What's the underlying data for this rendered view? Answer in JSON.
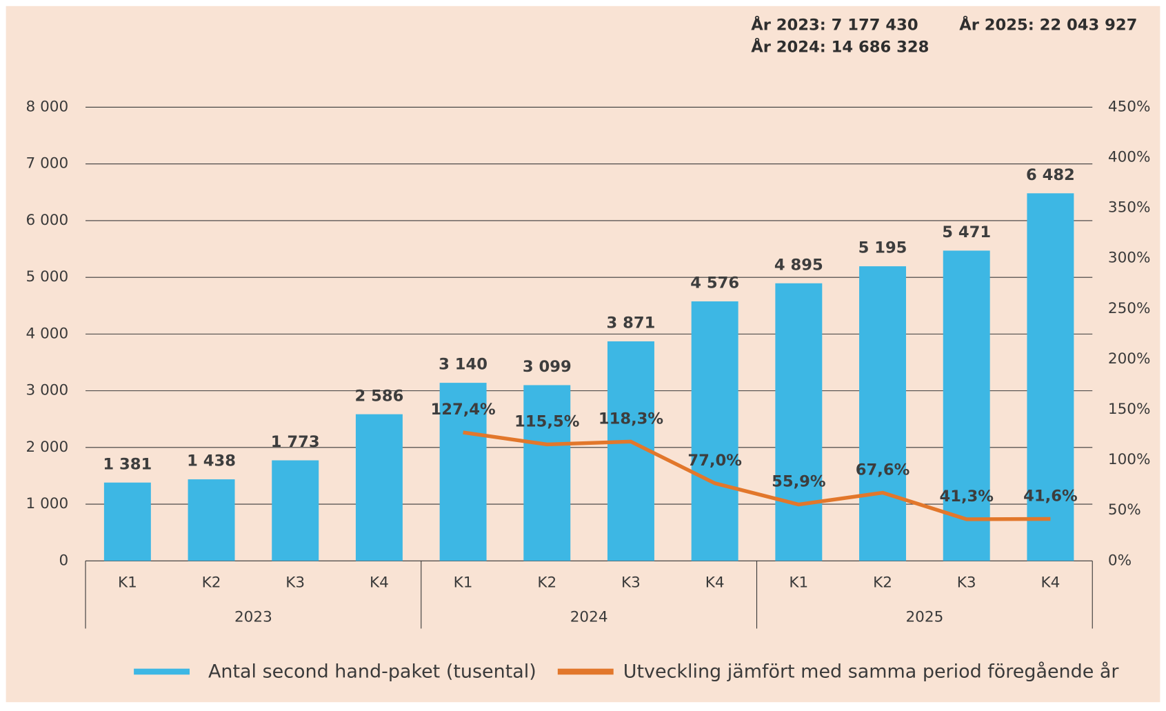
{
  "chart_data": {
    "type": "bar",
    "categories": [
      "K1",
      "K2",
      "K3",
      "K4",
      "K1",
      "K2",
      "K3",
      "K4",
      "K1",
      "K2",
      "K3",
      "K4"
    ],
    "category_groups": [
      "2023",
      "2024",
      "2025"
    ],
    "annotations": [
      "År 2023: 7 177 430",
      "År 2024: 14 686 328",
      "År 2025: 22 043 927"
    ],
    "series": [
      {
        "name": "Antal second hand-paket (tusental)",
        "type": "bar",
        "color": "#3db7e4",
        "values": [
          1381,
          1438,
          1773,
          2586,
          3140,
          3099,
          3871,
          4576,
          4895,
          5195,
          5471,
          6482
        ],
        "value_labels": [
          "1 381",
          "1 438",
          "1 773",
          "2 586",
          "3 140",
          "3 099",
          "3 871",
          "4 576",
          "4 895",
          "5 195",
          "5 471",
          "6 482"
        ]
      },
      {
        "name": "Utveckling jämfört med samma period föregående år",
        "type": "line",
        "axis": "y2",
        "color": "#e2772b",
        "values": [
          null,
          null,
          null,
          null,
          127.4,
          115.5,
          118.3,
          77.0,
          55.9,
          67.6,
          41.3,
          41.6
        ],
        "value_labels": [
          null,
          null,
          null,
          null,
          "127,4%",
          "115,5%",
          "118,3%",
          "77,0%",
          "55,9%",
          "67,6%",
          "41,3%",
          "41,6%"
        ]
      }
    ],
    "ylim": [
      0,
      8000
    ],
    "yticks": [
      0,
      {
        "value": 1000,
        "label": "1 000"
      },
      {
        "value": 2000,
        "label": "2 000"
      },
      {
        "value": 3000,
        "label": "3 000"
      },
      {
        "value": 4000,
        "label": "4 000"
      },
      {
        "value": 5000,
        "label": "5 000"
      },
      {
        "value": 6000,
        "label": "6 000"
      },
      {
        "value": 7000,
        "label": "7 000"
      },
      {
        "value": 8000,
        "label": "8 000"
      }
    ],
    "y2lim": [
      0,
      450
    ],
    "y2ticks": [
      {
        "value": 0,
        "label": "0%"
      },
      {
        "value": 50,
        "label": "50%"
      },
      {
        "value": 100,
        "label": "100%"
      },
      {
        "value": 150,
        "label": "150%"
      },
      {
        "value": 200,
        "label": "200%"
      },
      {
        "value": 250,
        "label": "250%"
      },
      {
        "value": 300,
        "label": "300%"
      },
      {
        "value": 350,
        "label": "350%"
      },
      {
        "value": 400,
        "label": "400%"
      },
      {
        "value": 450,
        "label": "450%"
      }
    ],
    "grid": true,
    "legend": "bottom"
  }
}
